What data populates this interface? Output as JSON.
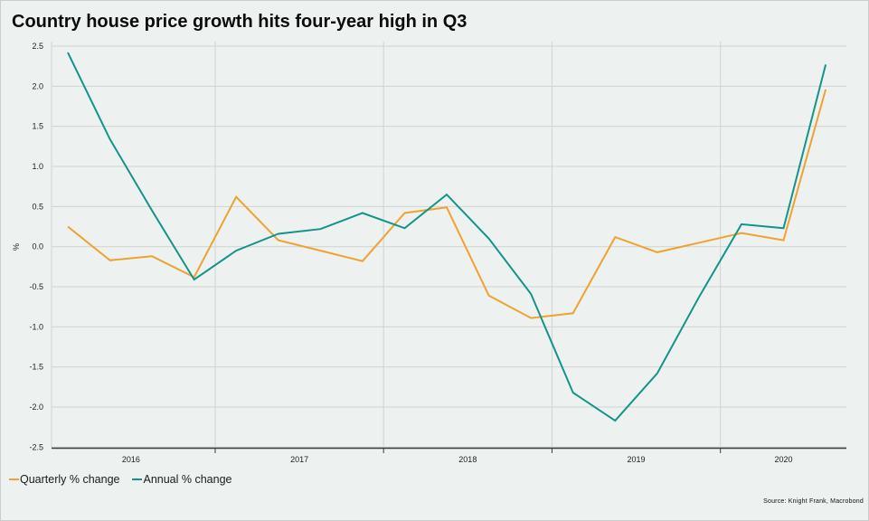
{
  "title": "Country house price growth hits four-year high in Q3",
  "source": "Source: Knight Frank, Macrobond",
  "colors": {
    "background": "#edf1ef",
    "gridline": "#cfd4d1",
    "axis": "#3c3c3c",
    "text": "#222222",
    "quarterly_series": "#f0a230",
    "annual_series": "#13948b"
  },
  "chart_data": {
    "type": "line",
    "title": "Country house price growth hits four-year high in Q3",
    "xlabel": "",
    "ylabel": "%",
    "ylim": [
      -2.5,
      2.5
    ],
    "ytick_step": 0.5,
    "grid": true,
    "legend_position": "bottom-left",
    "x": [
      "2016 Q1",
      "2016 Q2",
      "2016 Q3",
      "2016 Q4",
      "2017 Q1",
      "2017 Q2",
      "2017 Q3",
      "2017 Q4",
      "2018 Q1",
      "2018 Q2",
      "2018 Q3",
      "2018 Q4",
      "2019 Q1",
      "2019 Q2",
      "2019 Q3",
      "2019 Q4",
      "2020 Q1",
      "2020 Q2",
      "2020 Q3"
    ],
    "x_axis_labels": [
      "2016",
      "2017",
      "2018",
      "2019",
      "2020"
    ],
    "series": [
      {
        "name": "Quarterly % change",
        "color": "#f0a230",
        "values": [
          0.25,
          -0.17,
          -0.12,
          -0.38,
          0.62,
          0.08,
          -0.05,
          -0.18,
          0.42,
          0.49,
          -0.61,
          -0.89,
          -0.83,
          0.12,
          -0.07,
          0.05,
          0.17,
          0.08,
          1.96
        ]
      },
      {
        "name": "Annual % change",
        "color": "#13948b",
        "values": [
          2.42,
          1.34,
          0.45,
          -0.41,
          -0.05,
          0.16,
          0.22,
          0.42,
          0.23,
          0.65,
          0.1,
          -0.59,
          -1.82,
          -2.17,
          -1.58,
          -0.62,
          0.28,
          0.23,
          2.27
        ]
      }
    ]
  }
}
